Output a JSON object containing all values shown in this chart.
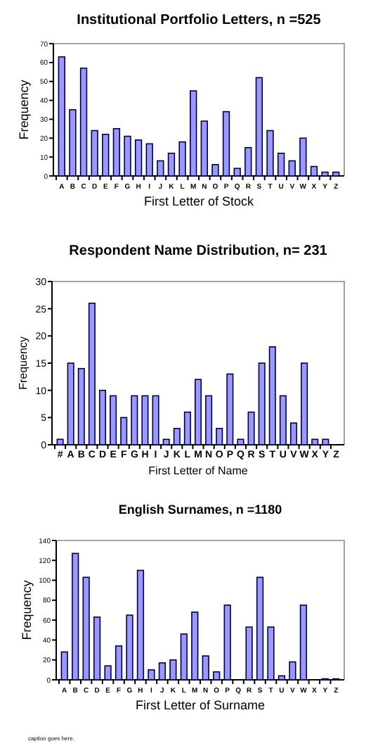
{
  "chart_data": [
    {
      "type": "bar",
      "title": "Institutional Portfolio Letters, n =525",
      "xlabel": "First Letter of Stock",
      "ylabel": "Frequency",
      "categories": [
        "A",
        "B",
        "C",
        "D",
        "E",
        "F",
        "G",
        "H",
        "I",
        "J",
        "K",
        "L",
        "M",
        "N",
        "O",
        "P",
        "Q",
        "R",
        "S",
        "T",
        "U",
        "V",
        "W",
        "X",
        "Y",
        "Z"
      ],
      "values": [
        63,
        35,
        57,
        24,
        22,
        25,
        21,
        19,
        17,
        8,
        12,
        18,
        45,
        29,
        6,
        34,
        4,
        15,
        52,
        24,
        12,
        8,
        20,
        5,
        2,
        2
      ],
      "color": "#9999ff",
      "ylim": [
        0,
        70
      ],
      "yticks": [
        0,
        10,
        20,
        30,
        40,
        50,
        60,
        70
      ],
      "grid": false
    },
    {
      "type": "bar",
      "title": "Respondent Name Distribution, n= 231",
      "xlabel": "First Letter of Name",
      "ylabel": "Frequency",
      "categories": [
        "#",
        "A",
        "B",
        "C",
        "D",
        "E",
        "F",
        "G",
        "H",
        "I",
        "J",
        "K",
        "L",
        "M",
        "N",
        "O",
        "P",
        "Q",
        "R",
        "S",
        "T",
        "U",
        "V",
        "W",
        "X",
        "Y",
        "Z"
      ],
      "values": [
        1,
        15,
        14,
        26,
        10,
        9,
        5,
        9,
        9,
        9,
        1,
        3,
        6,
        12,
        9,
        3,
        13,
        1,
        6,
        15,
        18,
        9,
        4,
        15,
        1,
        1,
        0
      ],
      "color": "#9999ff",
      "ylim": [
        0,
        30
      ],
      "yticks": [
        0,
        5,
        10,
        15,
        20,
        25,
        30
      ],
      "grid": false
    },
    {
      "type": "bar",
      "title": "English Surnames, n =1180",
      "xlabel": "First Letter of Surname",
      "ylabel": "Frequency",
      "categories": [
        "A",
        "B",
        "C",
        "D",
        "E",
        "F",
        "G",
        "H",
        "I",
        "J",
        "K",
        "L",
        "M",
        "N",
        "O",
        "P",
        "Q",
        "R",
        "S",
        "T",
        "U",
        "V",
        "W",
        "X",
        "Y",
        "Z"
      ],
      "values": [
        28,
        127,
        103,
        63,
        14,
        34,
        65,
        110,
        10,
        17,
        20,
        46,
        68,
        24,
        8,
        75,
        0,
        53,
        103,
        53,
        4,
        18,
        75,
        0,
        1,
        1
      ],
      "color": "#9999ff",
      "ylim": [
        0,
        140
      ],
      "yticks": [
        0,
        20,
        40,
        60,
        80,
        100,
        120,
        140
      ],
      "grid": false,
      "annotations": [
        "caption goes here."
      ]
    }
  ]
}
